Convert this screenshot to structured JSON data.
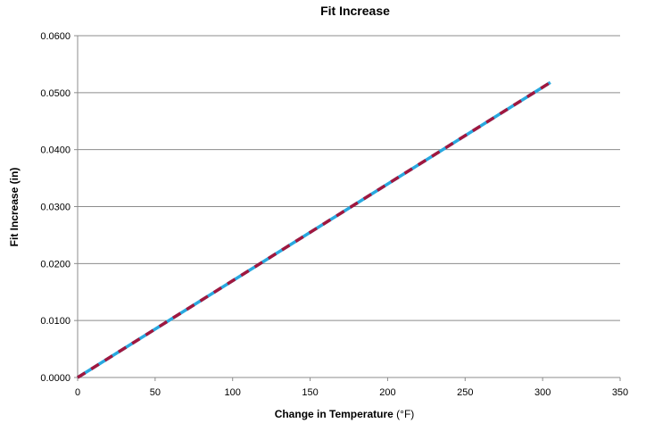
{
  "chart_data": {
    "type": "line",
    "title": "Fit Increase",
    "xlabel": "Change in Temperature",
    "xlabel_unit": "(°F)",
    "ylabel": "Fit Increase (in)",
    "xlim": [
      0,
      350
    ],
    "ylim": [
      0,
      0.06
    ],
    "x_ticks": [
      "0",
      "50",
      "100",
      "150",
      "200",
      "250",
      "300",
      "350"
    ],
    "y_ticks": [
      "0.0000",
      "0.0100",
      "0.0200",
      "0.0300",
      "0.0400",
      "0.0500",
      "0.0600"
    ],
    "grid": "horizontal",
    "series": [
      {
        "x": [
          0,
          305
        ],
        "y": [
          0,
          0.0518
        ],
        "color": "#29a8df",
        "style": "solid"
      },
      {
        "x": [
          0,
          305
        ],
        "y": [
          0,
          0.0518
        ],
        "color": "#a0173f",
        "style": "dashed"
      }
    ]
  }
}
